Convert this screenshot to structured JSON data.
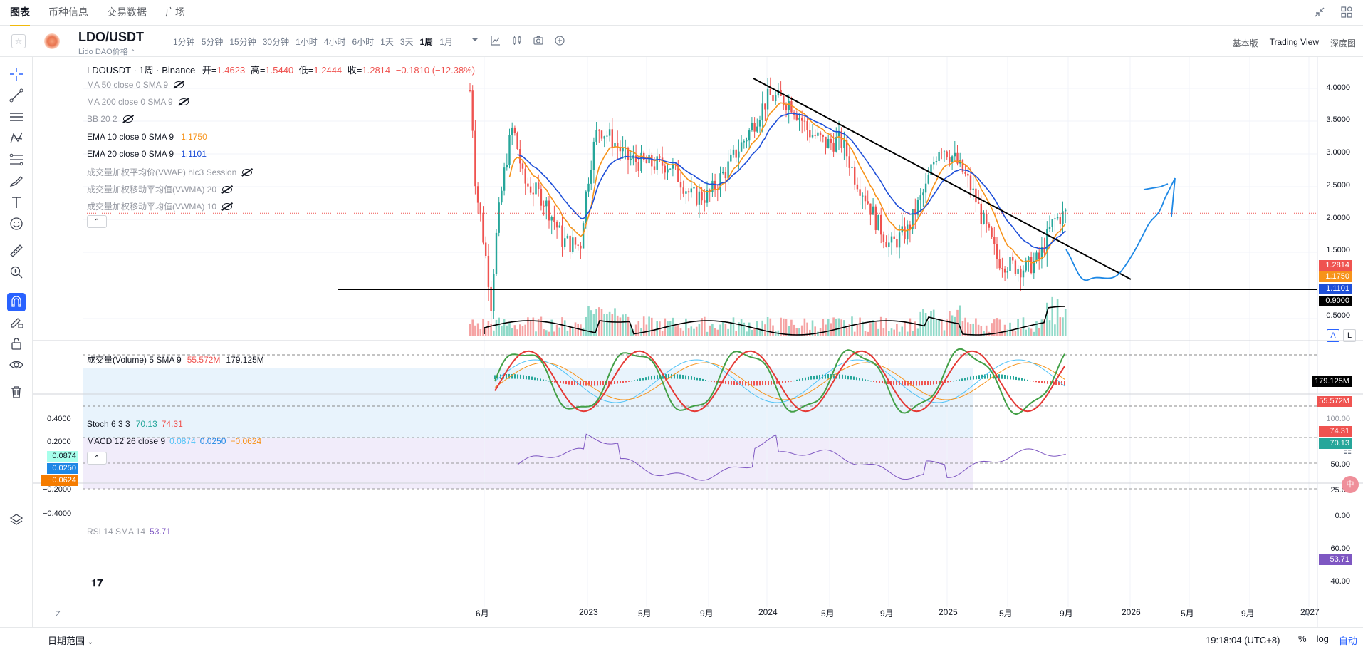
{
  "nav": {
    "tabs": [
      "图表",
      "币种信息",
      "交易数据",
      "广场"
    ]
  },
  "toolbar": {
    "pair": "LDO/USDT",
    "pair_sub": "Lido DAO价格",
    "intervals": [
      "1分钟",
      "5分钟",
      "15分钟",
      "30分钟",
      "1小时",
      "4小时",
      "6小时",
      "1天",
      "3天",
      "1周",
      "1月"
    ],
    "active_interval": "1周",
    "views": [
      "基本版",
      "Trading View",
      "深度图"
    ],
    "active_view": "Trading View"
  },
  "ohlc": {
    "symbol": "LDOUSDT · 1周 · Binance",
    "open_label": "开=",
    "open": "1.4623",
    "high_label": "高=",
    "high": "1.5440",
    "low_label": "低=",
    "low": "1.2444",
    "close_label": "收=",
    "close": "1.2814",
    "change": "−0.1810 (−12.38%)"
  },
  "indicators": {
    "ma50": "MA 50 close 0 SMA 9",
    "ma200": "MA 200 close 0 SMA 9",
    "bb": "BB 20 2",
    "ema10": "EMA 10 close 0 SMA 9",
    "ema10_val": "1.1750",
    "ema20": "EMA 20 close 0 SMA 9",
    "ema20_val": "1.1101",
    "vwap": "成交量加权平均价(VWAP) hlc3 Session",
    "vwma20": "成交量加权移动平均值(VWMA) 20",
    "vwma10": "成交量加权移动平均值(VWMA) 10"
  },
  "price_axis": [
    "4.0000",
    "3.5000",
    "3.0000",
    "2.5000",
    "2.0000",
    "1.5000",
    "0.5000"
  ],
  "price_tags": {
    "close": "1.2814",
    "ema10": "1.1750",
    "ema20": "1.1101",
    "line": "0.9000"
  },
  "volume": {
    "label": "成交量(Volume) 5 SMA 9",
    "val1": "55.572M",
    "val2": "179.125M"
  },
  "stoch": {
    "label": "Stoch 6 3 3",
    "k": "70.13",
    "d": "74.31",
    "axis": [
      "100.00",
      "50.00",
      "25.00",
      "0.00"
    ]
  },
  "macd": {
    "label": "MACD 12 26 close 9",
    "v1": "0.0874",
    "v2": "0.0250",
    "v3": "−0.0624",
    "axis": [
      "0.4000",
      "0.2000",
      "−0.2000",
      "−0.4000"
    ]
  },
  "rsi": {
    "label": "RSI 14 SMA 14",
    "val": "53.71",
    "axis": [
      "60.00",
      "40.00"
    ]
  },
  "time_axis": [
    "6月",
    "2023",
    "5月",
    "9月",
    "2024",
    "5月",
    "9月",
    "2025",
    "5月",
    "9月",
    "2026",
    "5月",
    "9月",
    "2027"
  ],
  "bottom": {
    "date_range": "日期范围",
    "clock": "19:18:04 (UTC+8)",
    "pct": "%",
    "log": "log",
    "auto": "自动"
  },
  "misc": {
    "auto_btn": "A",
    "log_btn": "L",
    "z_btn": "Z",
    "a_btn": "A",
    "side_badge": "中"
  },
  "colors": {
    "up": "#26a69a",
    "down": "#ef5350",
    "ema10": "#f7931a",
    "ema20": "#1e4fd8",
    "accent": "#f0b90b",
    "rsi": "#7e57c2"
  }
}
